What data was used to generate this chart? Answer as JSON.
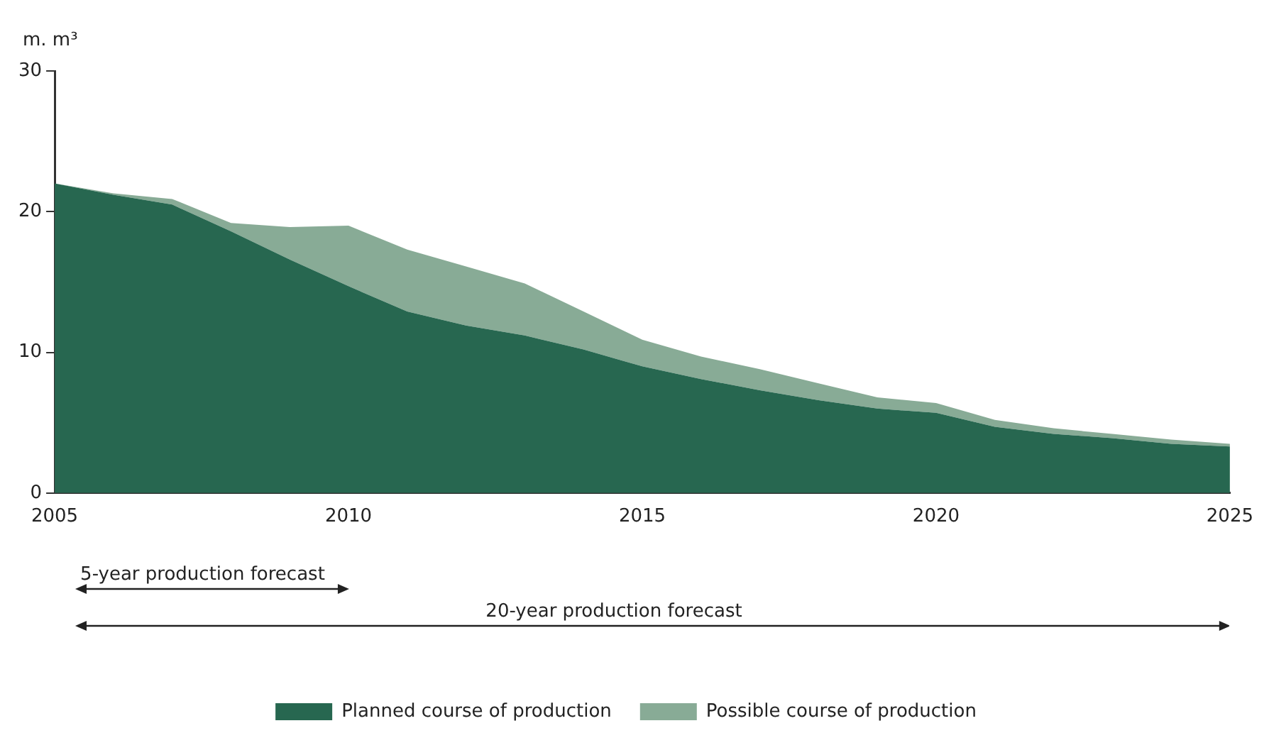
{
  "chart_data": {
    "type": "area",
    "ylabel": "m. m³",
    "x": [
      2005,
      2006,
      2007,
      2008,
      2009,
      2010,
      2011,
      2012,
      2013,
      2014,
      2015,
      2016,
      2017,
      2018,
      2019,
      2020,
      2021,
      2022,
      2023,
      2024,
      2025
    ],
    "series": [
      {
        "name": "Planned course of production",
        "color": "#276750",
        "values": [
          22,
          21.2,
          20.5,
          18.6,
          16.6,
          14.7,
          12.9,
          11.9,
          11.2,
          10.2,
          9.0,
          8.1,
          7.3,
          6.6,
          6.0,
          5.7,
          4.7,
          4.2,
          3.9,
          3.5,
          3.3
        ]
      },
      {
        "name": "Possible course of production",
        "color": "#88ab96",
        "values": [
          22,
          21.3,
          20.9,
          19.2,
          18.9,
          19.0,
          17.3,
          16.1,
          14.9,
          12.9,
          10.9,
          9.7,
          8.8,
          7.8,
          6.8,
          6.4,
          5.2,
          4.6,
          4.2,
          3.8,
          3.5
        ]
      }
    ],
    "xlim": [
      2005,
      2025
    ],
    "xticks": [
      2005,
      2010,
      2015,
      2020,
      2025
    ],
    "ylim": [
      0,
      30
    ],
    "yticks": [
      0,
      10,
      20,
      30
    ],
    "grid": false,
    "legend": "bottom",
    "annotations": [
      "5-year production forecast",
      "20-year production forecast"
    ]
  }
}
